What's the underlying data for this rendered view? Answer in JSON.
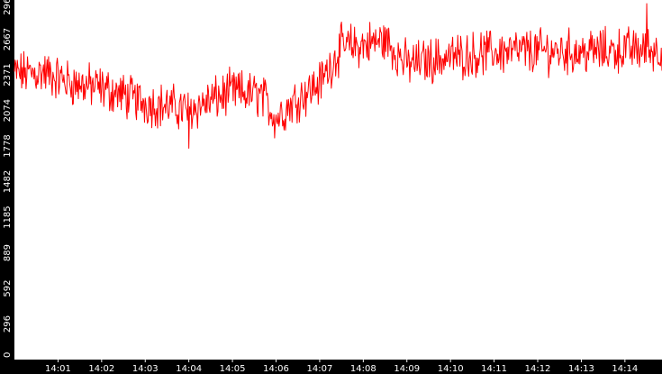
{
  "chart_data": {
    "type": "line",
    "title": "",
    "xlabel": "",
    "ylabel": "",
    "ylim": [
      0,
      2964
    ],
    "grid": false,
    "legend": "none",
    "colors": {
      "series": "#ff0000",
      "axis_bg": "#000000",
      "plot_bg": "#ffffff",
      "label": "#ffffff"
    },
    "y_ticks": [
      0,
      296,
      592,
      889,
      1185,
      1482,
      1778,
      2074,
      2371,
      2667,
      2964
    ],
    "x_ticks": [
      "14:01",
      "14:02",
      "14:03",
      "14:04",
      "14:05",
      "14:06",
      "14:07",
      "14:08",
      "14:09",
      "14:10",
      "14:11",
      "14:12",
      "14:13",
      "14:14"
    ],
    "x_range_minutes": [
      14.0,
      14.85
    ],
    "segments": [
      {
        "start": "14:00:00",
        "level": 2380
      },
      {
        "start": "14:00:40",
        "level": 2390
      },
      {
        "start": "14:01:20",
        "level": 2300
      },
      {
        "start": "14:02:00",
        "level": 2260
      },
      {
        "start": "14:03:00",
        "level": 2140
      },
      {
        "start": "14:04:00",
        "level": 2080
      },
      {
        "start": "14:05:00",
        "level": 2230
      },
      {
        "start": "14:05:40",
        "level": 2200
      },
      {
        "start": "14:06:00",
        "level": 2010
      },
      {
        "start": "14:06:30",
        "level": 2180
      },
      {
        "start": "14:07:00",
        "level": 2300
      },
      {
        "start": "14:07:30",
        "level": 2600
      },
      {
        "start": "14:08:00",
        "level": 2620
      },
      {
        "start": "14:08:30",
        "level": 2660
      },
      {
        "start": "14:09:00",
        "level": 2460
      },
      {
        "start": "14:10:00",
        "level": 2520
      },
      {
        "start": "14:11:00",
        "level": 2560
      },
      {
        "start": "14:12:00",
        "level": 2570
      },
      {
        "start": "14:13:00",
        "level": 2560
      },
      {
        "start": "14:14:00",
        "level": 2580
      },
      {
        "start": "14:14:40",
        "level": 2580
      }
    ],
    "noise_amplitude": 150,
    "peak": {
      "time": "14:14:30",
      "value": 2964
    },
    "min": {
      "time": "14:04:00",
      "value": 1760
    }
  }
}
